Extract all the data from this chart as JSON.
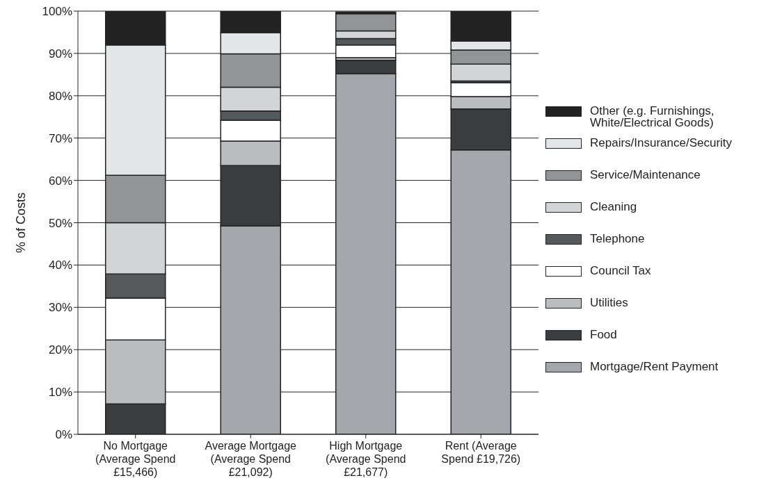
{
  "chart_data": {
    "type": "bar",
    "stacked": true,
    "ylabel": "% of Costs",
    "categories": [
      "No Mortgage (Average Spend £15,466)",
      "Average Mortgage (Average Spend £21,092)",
      "High Mortgage (Average Spend £21,677)",
      "Rent (Average Spend £19,726)"
    ],
    "series": [
      {
        "name": "Mortgage/Rent Payment",
        "color": "#a4a7ab",
        "values": [
          0,
          49.2,
          85.2,
          67.2
        ]
      },
      {
        "name": "Food",
        "color": "#3a3d40",
        "values": [
          7.2,
          14.3,
          3.2,
          9.7
        ]
      },
      {
        "name": "Utilities",
        "color": "#bbbcc0",
        "values": [
          15.1,
          5.8,
          0.6,
          2.9
        ]
      },
      {
        "name": "Council Tax",
        "color": "#ffffff",
        "values": [
          9.9,
          4.9,
          3.0,
          3.3
        ]
      },
      {
        "name": "Telephone",
        "color": "#55595c",
        "values": [
          5.7,
          2.2,
          1.5,
          0.4
        ]
      },
      {
        "name": "Cleaning",
        "color": "#d3d4d7",
        "values": [
          12.1,
          5.6,
          1.8,
          4.0
        ]
      },
      {
        "name": "Service/Maintenance",
        "color": "#939498",
        "values": [
          11.2,
          7.9,
          4.1,
          3.3
        ]
      },
      {
        "name": "Repairs/Insurance/Security",
        "color": "#e4e5e8",
        "values": [
          30.8,
          5.0,
          null,
          2.1
        ]
      },
      {
        "name": "Other (e.g. Furnishings, White/Electrical Goods)",
        "color": "#222222",
        "values": [
          8.0,
          5.1,
          0.4,
          7.1
        ]
      }
    ],
    "ylim": [
      0,
      100
    ],
    "yticks": [
      {
        "value": 0,
        "label": "0%"
      },
      {
        "value": 10,
        "label": "10%"
      },
      {
        "value": 20,
        "label": "20%"
      },
      {
        "value": 30,
        "label": "30%"
      },
      {
        "value": 40,
        "label": "40%"
      },
      {
        "value": 50,
        "label": "50%"
      },
      {
        "value": 60,
        "label": "60%"
      },
      {
        "value": 70,
        "label": "70%"
      },
      {
        "value": 80,
        "label": "80%"
      },
      {
        "value": 90,
        "label": "90%"
      },
      {
        "value": 100,
        "label": "100%"
      }
    ],
    "grid": "y",
    "legend": "right"
  }
}
